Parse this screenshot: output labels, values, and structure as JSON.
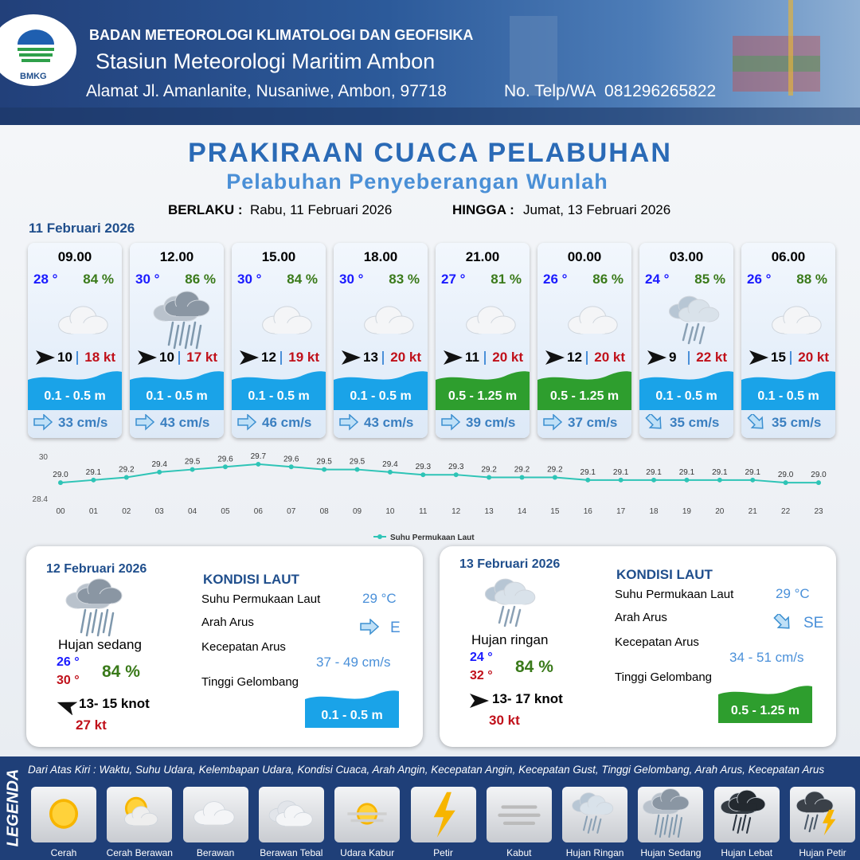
{
  "header": {
    "logo": "BMKG",
    "organization": "BADAN METEOROLOGI KLIMATOLOGI DAN GEOFISIKA",
    "station": "Stasiun Meteorologi Maritim Ambon",
    "address": "Alamat Jl. Amanlanite, Nusaniwe, Ambon, 97718",
    "phone": "No. Telp/WA  081296265822"
  },
  "title": "PRAKIRAAN CUACA PELABUHAN",
  "subtitle": "Pelabuhan Penyeberangan Wunlah",
  "validity": {
    "from_label": "BERLAKU :",
    "from": "Rabu, 11 Februari 2026",
    "to_label": "HINGGA :",
    "to": "Jumat, 13 Februari 2026"
  },
  "forecast": {
    "date": "11 Februari 2026",
    "cards": [
      {
        "time": "09.00",
        "temp": "28 °",
        "humidity": "84 %",
        "wind": "10",
        "gust": "18 kt",
        "wave": "0.1 - 0.5 m",
        "current": "33 cm/s"
      },
      {
        "time": "12.00",
        "temp": "30 °",
        "humidity": "86 %",
        "wind": "10",
        "gust": "17 kt",
        "wave": "0.1 - 0.5 m",
        "current": "43 cm/s"
      },
      {
        "time": "15.00",
        "temp": "30 °",
        "humidity": "84 %",
        "wind": "12",
        "gust": "19 kt",
        "wave": "0.1 - 0.5 m",
        "current": "46 cm/s"
      },
      {
        "time": "18.00",
        "temp": "30 °",
        "humidity": "83 %",
        "wind": "13",
        "gust": "20 kt",
        "wave": "0.1 - 0.5 m",
        "current": "43 cm/s"
      },
      {
        "time": "21.00",
        "temp": "27 °",
        "humidity": "81 %",
        "wind": "11",
        "gust": "20 kt",
        "wave": "0.5 - 1.25 m",
        "current": "39 cm/s"
      },
      {
        "time": "00.00",
        "temp": "26 °",
        "humidity": "86 %",
        "wind": "12",
        "gust": "20 kt",
        "wave": "0.5 - 1.25 m",
        "current": "37 cm/s"
      },
      {
        "time": "03.00",
        "temp": "24 °",
        "humidity": "85 %",
        "wind": "9",
        "gust": "22 kt",
        "wave": "0.1 - 0.5 m",
        "current": "35 cm/s"
      },
      {
        "time": "06.00",
        "temp": "26 °",
        "humidity": "88 %",
        "wind": "15",
        "gust": "20 kt",
        "wave": "0.1 - 0.5 m",
        "current": "35 cm/s"
      }
    ]
  },
  "chart_data": {
    "type": "line",
    "categories": [
      "00",
      "01",
      "02",
      "03",
      "04",
      "05",
      "06",
      "07",
      "08",
      "09",
      "10",
      "11",
      "12",
      "13",
      "14",
      "15",
      "16",
      "17",
      "18",
      "19",
      "20",
      "21",
      "22",
      "23"
    ],
    "series": [
      {
        "name": "Suhu Permukaan Laut",
        "color": "#2ec4b6",
        "values": [
          29.0,
          29.1,
          29.2,
          29.4,
          29.5,
          29.6,
          29.7,
          29.6,
          29.5,
          29.5,
          29.4,
          29.3,
          29.3,
          29.2,
          29.2,
          29.2,
          29.1,
          29.1,
          29.1,
          29.1,
          29.1,
          29.1,
          29.0,
          29.0
        ],
        "value_labels": [
          "29.0",
          "29.1",
          "29.2",
          "29.4",
          "29.5",
          "29.6",
          "29.7",
          "29.6",
          "29.5",
          "29.5",
          "29.4",
          "29.3",
          "29.3",
          "29.2",
          "29.2",
          "29.2",
          "29.1",
          "29.1",
          "29.1",
          "29.1",
          "29.1",
          "29.1",
          "29.0",
          "29.0"
        ]
      }
    ],
    "ylim": [
      28.4,
      30
    ],
    "yticks": [
      28.4,
      30
    ],
    "legend": "bottom"
  },
  "days": [
    {
      "date": "12 Februari 2026",
      "condition": "Hujan sedang",
      "temp_min": "26 °",
      "temp_max": "30 °",
      "humidity": "84 %",
      "wind": "13- 15 knot",
      "gust": "27 kt",
      "sea_heading": "KONDISI LAUT",
      "labels": [
        "Suhu Permukaan Laut",
        "Arah Arus",
        "Kecepatan Arus",
        "Tinggi Gelombang"
      ],
      "sst": "29 °C",
      "current_dir": "E",
      "current_speed": "37 - 49 cm/s",
      "wave": "0.1 - 0.5 m"
    },
    {
      "date": "13 Februari 2026",
      "condition": "Hujan ringan",
      "temp_min": "24 °",
      "temp_max": "32 °",
      "humidity": "84 %",
      "wind": "13- 17 knot",
      "gust": "30 kt",
      "sea_heading": "KONDISI LAUT",
      "labels": [
        "Suhu Permukaan Laut",
        "Arah Arus",
        "Kecepatan Arus",
        "Tinggi Gelombang"
      ],
      "sst": "29 °C",
      "current_dir": "SE",
      "current_speed": "34 - 51 cm/s",
      "wave": "0.5 - 1.25 m"
    }
  ],
  "legend": {
    "title": "LEGENDA",
    "description": "Dari Atas Kiri : Waktu, Suhu Udara, Kelembapan Udara, Kondisi Cuaca, Arah Angin, Kecepatan Angin, Kecepatan Gust, Tinggi Gelombang, Arah Arus, Kecepatan Arus",
    "items": [
      "Cerah",
      "Cerah Berawan",
      "Berawan",
      "Berawan Tebal",
      "Udara Kabur",
      "Petir",
      "Kabut",
      "Hujan Ringan",
      "Hujan Sedang",
      "Hujan Lebat",
      "Hujan Petir"
    ]
  }
}
